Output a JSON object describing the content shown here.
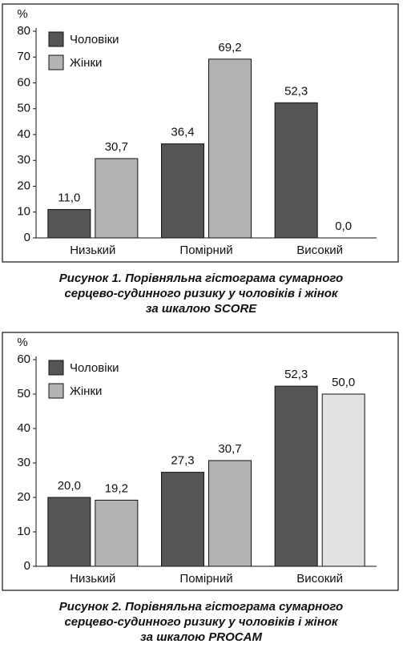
{
  "chart_data": [
    {
      "type": "bar",
      "y_label": "%",
      "categories": [
        "Низький",
        "Помірний",
        "Високий"
      ],
      "series": [
        {
          "name": "Чоловіки",
          "color": "#555555",
          "values": [
            11.0,
            36.4,
            52.3
          ],
          "value_labels": [
            "11,0",
            "36,4",
            "52,3"
          ]
        },
        {
          "name": "Жінки",
          "color": "#b3b3b3",
          "values": [
            30.7,
            69.2,
            0.0
          ],
          "value_labels": [
            "30,7",
            "69,2",
            "0,0"
          ]
        }
      ],
      "ylim": [
        0,
        80
      ],
      "yticks": [
        0,
        10,
        20,
        30,
        40,
        50,
        60,
        70,
        80
      ],
      "caption": [
        "Рисунок 1. Порівняльна гістограма сумарного",
        "серцево-судинного ризику у чоловіків і жінок",
        "за шкалою SCORE"
      ]
    },
    {
      "type": "bar",
      "y_label": "%",
      "categories": [
        "Низький",
        "Помірний",
        "Високий"
      ],
      "series": [
        {
          "name": "Чоловіки",
          "color": "#555555",
          "values": [
            20.0,
            27.3,
            52.3
          ],
          "value_labels": [
            "20,0",
            "27,3",
            "52,3"
          ]
        },
        {
          "name": "Жінки",
          "color": "#b3b3b3",
          "colors": [
            "#b3b3b3",
            "#b3b3b3",
            "#e2e2e2"
          ],
          "values": [
            19.2,
            30.7,
            50.0
          ],
          "value_labels": [
            "19,2",
            "30,7",
            "50,0"
          ]
        }
      ],
      "ylim": [
        0,
        60
      ],
      "yticks": [
        0,
        10,
        20,
        30,
        40,
        50,
        60
      ],
      "caption": [
        "Рисунок 2. Порівняльна гістограма сумарного",
        "серцево-судинного ризику у чоловіків і жінок",
        "за шкалою PROCAM"
      ]
    }
  ]
}
